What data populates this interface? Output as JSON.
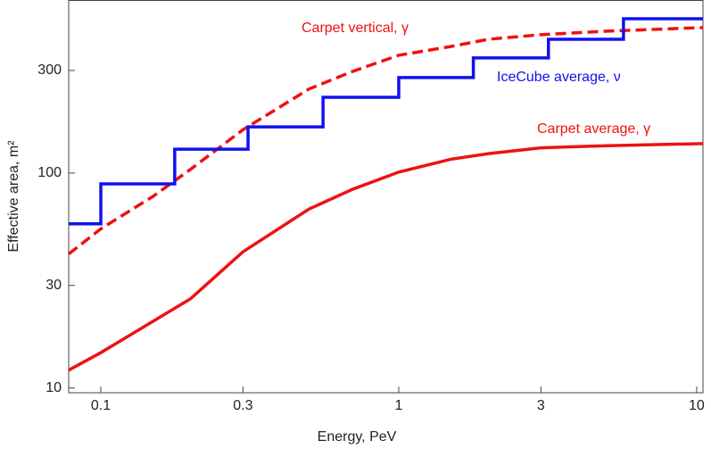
{
  "chart_data": {
    "type": "line",
    "xlabel": "Energy, PeV",
    "ylabel": "Effective area, m²",
    "xscale": "log",
    "yscale": "log",
    "xlim": [
      0.078,
      10.5
    ],
    "ylim": [
      9.5,
      638
    ],
    "xticks": [
      0.1,
      0.3,
      1,
      3,
      10
    ],
    "yticks": [
      10,
      30,
      100,
      300
    ],
    "series": [
      {
        "name": "Carpet vertical, γ",
        "color": "#ee1111",
        "dash": true,
        "x": [
          0.078,
          0.1,
          0.15,
          0.2,
          0.3,
          0.5,
          0.7,
          1,
          1.5,
          2,
          3,
          5,
          10.5
        ],
        "values": [
          42,
          55,
          78,
          104,
          159,
          246,
          297,
          353,
          388,
          419,
          440,
          457,
          475
        ]
      },
      {
        "name": "IceCube average, ν",
        "color": "#1111ee",
        "step": "post",
        "x": [
          0.078,
          0.1,
          0.177,
          0.312,
          0.557,
          1,
          1.78,
          3.18,
          5.68,
          10.5
        ],
        "values": [
          58,
          89,
          129,
          164,
          225,
          278,
          343,
          419,
          522,
          522
        ]
      },
      {
        "name": "Carpet average, γ",
        "color": "#ee1111",
        "x": [
          0.078,
          0.1,
          0.2,
          0.3,
          0.5,
          0.7,
          1,
          1.5,
          2,
          3,
          5,
          10.5
        ],
        "values": [
          12.1,
          14.6,
          26,
          43,
          68,
          84,
          101,
          116,
          123,
          131,
          134,
          137
        ]
      }
    ]
  }
}
